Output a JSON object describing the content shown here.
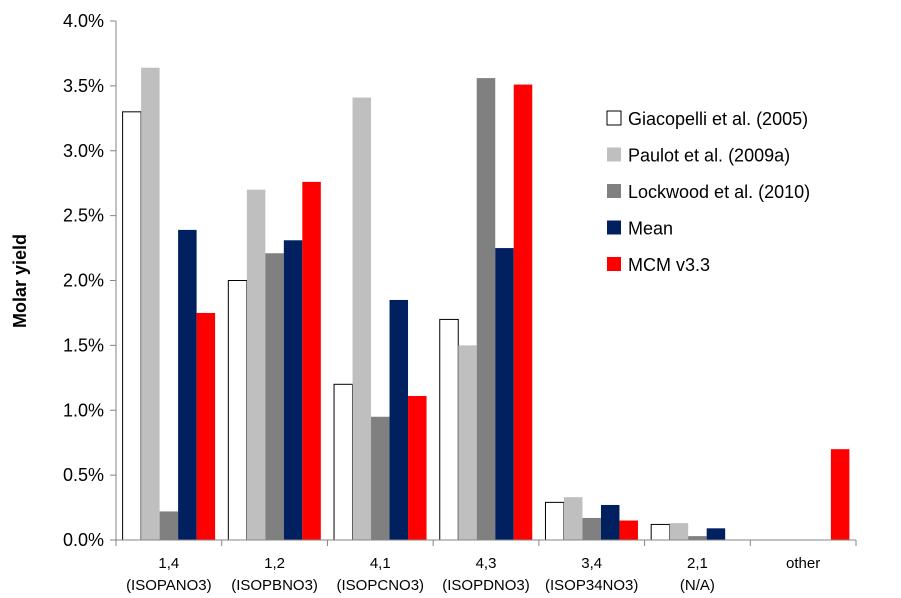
{
  "chart_data": {
    "type": "bar",
    "title": "",
    "xlabel": "",
    "ylabel": "Molar yield",
    "ylim": [
      0,
      0.04
    ],
    "yticks": [
      "0.0%",
      "0.5%",
      "1.0%",
      "1.5%",
      "2.0%",
      "2.5%",
      "3.0%",
      "3.5%",
      "4.0%"
    ],
    "grid": false,
    "legend_position": "top-right",
    "categories": [
      {
        "line1": "1,4",
        "line2": "(ISOPANO3)"
      },
      {
        "line1": "1,2",
        "line2": "(ISOPBNO3)"
      },
      {
        "line1": "4,1",
        "line2": "(ISOPCNO3)"
      },
      {
        "line1": "4,3",
        "line2": "(ISOPDNO3)"
      },
      {
        "line1": "3,4",
        "line2": "(ISOP34NO3)"
      },
      {
        "line1": "2,1",
        "line2": "(N/A)"
      },
      {
        "line1": "other",
        "line2": ""
      }
    ],
    "series": [
      {
        "name": "Giacopelli et al. (2005)",
        "color": "#ffffff",
        "values": [
          0.033,
          0.02,
          0.012,
          0.017,
          0.0029,
          0.0012,
          null
        ]
      },
      {
        "name": "Paulot et al. (2009a)",
        "color": "#bfbfbf",
        "values": [
          0.0364,
          0.027,
          0.0341,
          0.015,
          0.0033,
          0.0013,
          null
        ]
      },
      {
        "name": "Lockwood et al. (2010)",
        "color": "#808080",
        "values": [
          0.0022,
          0.0221,
          0.0095,
          0.0356,
          0.0017,
          0.0003,
          null
        ]
      },
      {
        "name": "Mean",
        "color": "#002060",
        "values": [
          0.0239,
          0.0231,
          0.0185,
          0.0225,
          0.0027,
          0.0009,
          null
        ]
      },
      {
        "name": "MCM v3.3",
        "color": "#ff0000",
        "values": [
          0.0175,
          0.0276,
          0.0111,
          0.0351,
          0.0015,
          null,
          0.007
        ]
      }
    ]
  }
}
